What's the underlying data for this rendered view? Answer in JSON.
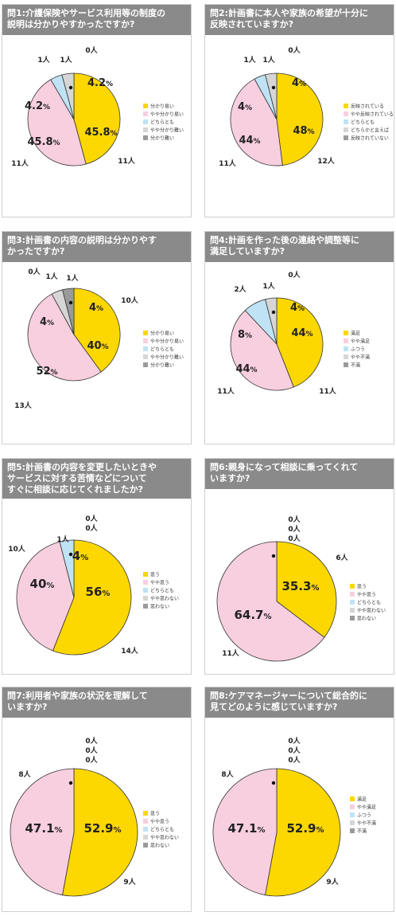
{
  "colors": {
    "slice": [
      "#fcd700",
      "#f8cfdf",
      "#bfe3f4",
      "#d6d6d6",
      "#9a9a9a"
    ],
    "header_bg": "#8a8a8a"
  },
  "chart_data": [
    {
      "type": "pie",
      "title": "問1:介護保険やサービス利用等の制度の\n説明は分かりやすかったですか?",
      "categories": [
        "分かり易い",
        "やや分かり易い",
        "どちらとも",
        "やや分かり難い",
        "分かり難い"
      ],
      "counts": [
        11,
        11,
        1,
        1,
        0
      ],
      "percents": [
        45.8,
        45.8,
        4.2,
        4.2,
        0
      ],
      "count_labels": [
        "11人",
        "11人",
        "1人",
        "1人",
        "0人"
      ],
      "percent_labels": [
        "45.8%",
        "45.8%",
        "4.2%",
        "4.2%"
      ]
    },
    {
      "type": "pie",
      "title": "問2:計画書に本人や家族の希望が十分に\n反映されていますか?",
      "categories": [
        "反映されている",
        "やや反映されている",
        "どちらとも",
        "どちらかと言えば",
        "反映されていない"
      ],
      "counts": [
        12,
        11,
        1,
        1,
        0
      ],
      "percents": [
        48,
        44,
        4,
        4,
        0
      ],
      "count_labels": [
        "12人",
        "11人",
        "1人",
        "1人",
        "0人"
      ],
      "percent_labels": [
        "48%",
        "44%",
        "4%",
        "4%"
      ]
    },
    {
      "type": "pie",
      "title": "問3:計画書の内容の説明は分かりやす\nかったですか?",
      "categories": [
        "分かり易い",
        "やや分かり易い",
        "どちらとも",
        "やや分かり難い",
        "分かり難い"
      ],
      "counts": [
        10,
        13,
        0,
        1,
        1
      ],
      "percents": [
        40,
        52,
        0,
        4,
        4
      ],
      "count_labels": [
        "10人",
        "13人",
        "0人",
        "1人",
        "1人"
      ],
      "percent_labels": [
        "40%",
        "52%",
        "4%",
        "4%"
      ]
    },
    {
      "type": "pie",
      "title": "問4:計画を作った後の連絡や調整等に\n満足していますか?",
      "categories": [
        "満足",
        "やや満足",
        "ふつう",
        "やや不満",
        "不満"
      ],
      "counts": [
        11,
        11,
        2,
        1,
        0
      ],
      "percents": [
        44,
        44,
        8,
        4,
        0
      ],
      "count_labels": [
        "11人",
        "11人",
        "2人",
        "1人",
        "0人"
      ],
      "percent_labels": [
        "44%",
        "44%",
        "8%",
        "4%"
      ]
    },
    {
      "type": "pie",
      "title": "問5:計画書の内容を変更したいときや\nサービスに対する苦情などについて\nすぐに相談に応じてくれましたか?",
      "categories": [
        "思う",
        "やや思う",
        "どちらとも",
        "やや思わない",
        "思わない"
      ],
      "counts": [
        14,
        10,
        1,
        0,
        0
      ],
      "percents": [
        56,
        40,
        4,
        0,
        0
      ],
      "count_labels": [
        "14人",
        "10人",
        "1人",
        "0人",
        "0人"
      ],
      "percent_labels": [
        "56%",
        "40%",
        "4%"
      ]
    },
    {
      "type": "pie",
      "title": "問6:親身になって相談に乗ってくれて\nいますか?",
      "categories": [
        "思う",
        "やや思う",
        "どちらとも",
        "やや思わない",
        "思わない"
      ],
      "counts": [
        6,
        11,
        0,
        0,
        0
      ],
      "percents": [
        35.3,
        64.7,
        0,
        0,
        0
      ],
      "count_labels": [
        "6人",
        "11人",
        "0人",
        "0人",
        "0人"
      ],
      "percent_labels": [
        "35.3%",
        "64.7%"
      ]
    },
    {
      "type": "pie",
      "title": "問7:利用者や家族の状況を理解して\nいますか?",
      "categories": [
        "思う",
        "やや思う",
        "どちらとも",
        "やや思わない",
        "思わない"
      ],
      "counts": [
        9,
        8,
        0,
        0,
        0
      ],
      "percents": [
        52.9,
        47.1,
        0,
        0,
        0
      ],
      "count_labels": [
        "9人",
        "8人",
        "0人",
        "0人",
        "0人"
      ],
      "percent_labels": [
        "52.9%",
        "47.1%"
      ]
    },
    {
      "type": "pie",
      "title": "問8:ケアマネージャーについて総合的に\n見てどのように感じていますか?",
      "categories": [
        "満足",
        "やや満足",
        "ふつう",
        "やや不満",
        "不満"
      ],
      "counts": [
        9,
        8,
        0,
        0,
        0
      ],
      "percents": [
        52.9,
        47.1,
        0,
        0,
        0
      ],
      "count_labels": [
        "9人",
        "8人",
        "0人",
        "0人",
        "0人"
      ],
      "percent_labels": [
        "52.9%",
        "47.1%"
      ]
    }
  ]
}
